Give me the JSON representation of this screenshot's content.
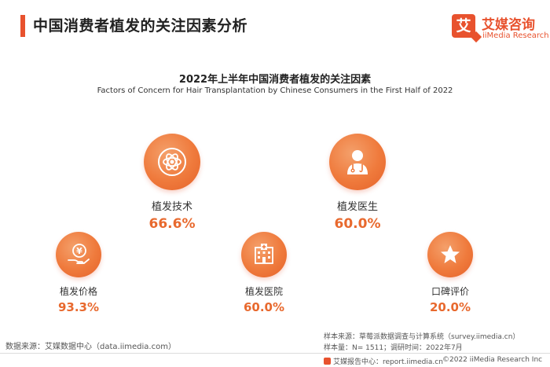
{
  "header": {
    "title": "中国消费者植发的关注因素分析"
  },
  "logo": {
    "badge_char": "艾",
    "cn": "艾媒咨询",
    "en": "iiMedia Research"
  },
  "chart_data": {
    "type": "table",
    "title": "2022年上半年中国消费者植发的关注因素",
    "subtitle": "Factors of Concern for Hair Transplantation by Chinese Consumers in  the  First Half of 2022",
    "categories": [
      "植发技术",
      "植发医生",
      "植发价格",
      "植发医院",
      "口碑评价"
    ],
    "values": [
      66.6,
      60.0,
      93.3,
      60.0,
      20.0
    ],
    "value_labels": [
      "66.6%",
      "60.0%",
      "93.3%",
      "60.0%",
      "20.0%"
    ],
    "icons": [
      "atom-icon",
      "doctor-icon",
      "money-hand-icon",
      "hospital-icon",
      "star-icon"
    ],
    "colors": {
      "accent": "#e8692e",
      "brand": "#e8522e"
    }
  },
  "footer": {
    "data_source": "数据来源：艾媒数据中心（data.iimedia.com）",
    "sample_source": "样本来源：草莓派数据调查与计算系统（survey.iimedia.cn）",
    "sample_size": "样本量：N= 1511；调研时间：2022年7月",
    "report_center": "艾媒报告中心：report.iimedia.cn",
    "copyright": "©2022  iiMedia Research  Inc"
  }
}
